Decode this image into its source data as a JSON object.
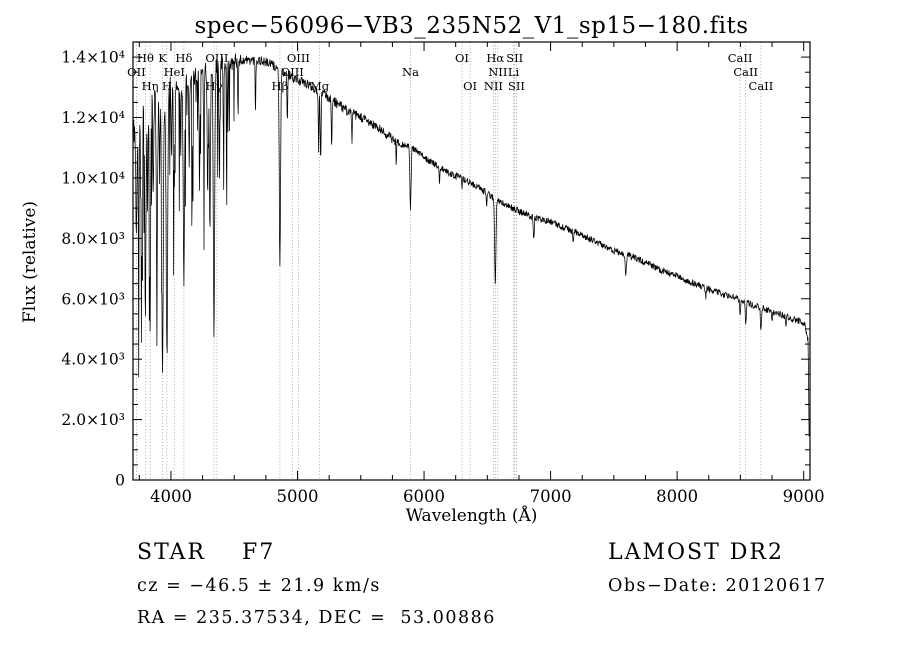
{
  "title": "spec−56096−VB3_235N52_V1_sp15−180.fits",
  "chart_data": {
    "type": "line",
    "title": "spec−56096−VB3_235N52_V1_sp15−180.fits",
    "xlabel": "Wavelength (Å)",
    "ylabel": "Flux (relative)",
    "xlim": [
      3700,
      9050
    ],
    "ylim": [
      0,
      14500
    ],
    "wl_range": [
      3700,
      9045
    ],
    "grid": "off",
    "x_ticks": [
      4000,
      5000,
      6000,
      7000,
      8000,
      9000
    ],
    "x_minor_step": 250,
    "y_minor_step": 500,
    "y_ticks": [
      {
        "v": 0,
        "label": "0"
      },
      {
        "v": 2000,
        "label": "2.0×10³"
      },
      {
        "v": 4000,
        "label": "4.0×10³"
      },
      {
        "v": 6000,
        "label": "6.0×10³"
      },
      {
        "v": 8000,
        "label": "8.0×10³"
      },
      {
        "v": 10000,
        "label": "1.0×10⁴"
      },
      {
        "v": 12000,
        "label": "1.2×10⁴"
      },
      {
        "v": 14000,
        "label": "1.4×10⁴"
      }
    ],
    "line_markers": [
      {
        "text": "Hθ",
        "wl": 3798,
        "row": 1
      },
      {
        "text": "K",
        "wl": 3933,
        "row": 1
      },
      {
        "text": "Hδ",
        "wl": 4102,
        "row": 1
      },
      {
        "text": "OIII",
        "wl": 4363,
        "row": 1
      },
      {
        "text": "OIII",
        "wl": 5007,
        "row": 1
      },
      {
        "text": "OI",
        "wl": 6300,
        "row": 1
      },
      {
        "text": "Hα",
        "wl": 6563,
        "row": 1
      },
      {
        "text": "SII",
        "wl": 6716,
        "row": 1
      },
      {
        "text": "CaII",
        "wl": 8498,
        "row": 1
      },
      {
        "text": "OII",
        "wl": 3727,
        "row": 2
      },
      {
        "text": "HeI",
        "wl": 4026,
        "row": 2
      },
      {
        "text": "OIII",
        "wl": 4959,
        "row": 2
      },
      {
        "text": "Na",
        "wl": 5893,
        "row": 2
      },
      {
        "text": "NII",
        "wl": 6583,
        "row": 2
      },
      {
        "text": "Li",
        "wl": 6708,
        "row": 2
      },
      {
        "text": "CaII",
        "wl": 8542,
        "row": 2
      },
      {
        "text": "Hη",
        "wl": 3835,
        "row": 3
      },
      {
        "text": "H",
        "wl": 3968,
        "row": 3
      },
      {
        "text": "Hγ",
        "wl": 4340,
        "row": 3
      },
      {
        "text": "Hβ",
        "wl": 4861,
        "row": 3
      },
      {
        "text": "Mg",
        "wl": 5175,
        "row": 3
      },
      {
        "text": "OI",
        "wl": 6364,
        "row": 3
      },
      {
        "text": "NII",
        "wl": 6548,
        "row": 3
      },
      {
        "text": "SII",
        "wl": 6731,
        "row": 3
      },
      {
        "text": "CaII",
        "wl": 8662,
        "row": 3
      }
    ],
    "continuum": [
      [
        3700,
        11500
      ],
      [
        3760,
        12200
      ],
      [
        3820,
        12600
      ],
      [
        3880,
        12800
      ],
      [
        3940,
        12800
      ],
      [
        4000,
        12900
      ],
      [
        4100,
        13100
      ],
      [
        4200,
        13400
      ],
      [
        4300,
        13600
      ],
      [
        4400,
        13800
      ],
      [
        4500,
        13850
      ],
      [
        4600,
        13900
      ],
      [
        4700,
        13900
      ],
      [
        4800,
        13750
      ],
      [
        4900,
        13450
      ],
      [
        5000,
        13250
      ],
      [
        5100,
        13050
      ],
      [
        5200,
        12800
      ],
      [
        5300,
        12500
      ],
      [
        5400,
        12200
      ],
      [
        5500,
        12000
      ],
      [
        5600,
        11750
      ],
      [
        5700,
        11450
      ],
      [
        5800,
        11150
      ],
      [
        5900,
        11000
      ],
      [
        6000,
        10700
      ],
      [
        6100,
        10400
      ],
      [
        6200,
        10150
      ],
      [
        6300,
        10000
      ],
      [
        6400,
        9750
      ],
      [
        6500,
        9500
      ],
      [
        6600,
        9200
      ],
      [
        6700,
        9000
      ],
      [
        6800,
        8800
      ],
      [
        6900,
        8650
      ],
      [
        7000,
        8550
      ],
      [
        7100,
        8350
      ],
      [
        7200,
        8200
      ],
      [
        7300,
        8000
      ],
      [
        7400,
        7800
      ],
      [
        7500,
        7600
      ],
      [
        7600,
        7450
      ],
      [
        7700,
        7300
      ],
      [
        7800,
        7100
      ],
      [
        7900,
        6900
      ],
      [
        8000,
        6750
      ],
      [
        8100,
        6550
      ],
      [
        8200,
        6400
      ],
      [
        8300,
        6250
      ],
      [
        8400,
        6100
      ],
      [
        8500,
        5950
      ],
      [
        8600,
        5800
      ],
      [
        8700,
        5650
      ],
      [
        8800,
        5500
      ],
      [
        8900,
        5350
      ],
      [
        8970,
        5250
      ],
      [
        9010,
        5100
      ],
      [
        9035,
        4600
      ],
      [
        9045,
        700
      ]
    ],
    "absorption_lines": [
      [
        3727,
        0.3,
        12
      ],
      [
        3745,
        0.4,
        8
      ],
      [
        3762,
        0.25,
        7
      ],
      [
        3771,
        0.45,
        8
      ],
      [
        3798,
        0.55,
        11
      ],
      [
        3815,
        0.3,
        7
      ],
      [
        3835,
        0.58,
        11
      ],
      [
        3860,
        0.3,
        8
      ],
      [
        3889,
        0.5,
        11
      ],
      [
        3910,
        0.25,
        7
      ],
      [
        3933,
        0.72,
        14
      ],
      [
        3968,
        0.68,
        14
      ],
      [
        4005,
        0.2,
        7
      ],
      [
        4026,
        0.25,
        8
      ],
      [
        4077,
        0.2,
        6
      ],
      [
        4102,
        0.52,
        12
      ],
      [
        4144,
        0.22,
        7
      ],
      [
        4172,
        0.18,
        6
      ],
      [
        4226,
        0.28,
        8
      ],
      [
        4260,
        0.2,
        7
      ],
      [
        4290,
        0.3,
        9
      ],
      [
        4308,
        0.4,
        10
      ],
      [
        4340,
        0.66,
        12
      ],
      [
        4383,
        0.28,
        8
      ],
      [
        4415,
        0.2,
        7
      ],
      [
        4450,
        0.15,
        6
      ],
      [
        4530,
        0.12,
        6
      ],
      [
        4668,
        0.12,
        6
      ],
      [
        4861,
        0.48,
        12
      ],
      [
        4920,
        0.12,
        6
      ],
      [
        5167,
        0.15,
        7
      ],
      [
        5183,
        0.18,
        8
      ],
      [
        5270,
        0.12,
        7
      ],
      [
        5430,
        0.08,
        6
      ],
      [
        5780,
        0.06,
        6
      ],
      [
        5893,
        0.18,
        11
      ],
      [
        6122,
        0.05,
        6
      ],
      [
        6300,
        0.05,
        6
      ],
      [
        6495,
        0.06,
        6
      ],
      [
        6563,
        0.3,
        12
      ],
      [
        6867,
        0.08,
        9
      ],
      [
        7180,
        0.05,
        8
      ],
      [
        7594,
        0.09,
        11
      ],
      [
        8227,
        0.05,
        7
      ],
      [
        8498,
        0.09,
        8
      ],
      [
        8542,
        0.13,
        9
      ],
      [
        8662,
        0.13,
        9
      ],
      [
        8750,
        0.06,
        7
      ],
      [
        8860,
        0.07,
        7
      ]
    ],
    "noise": {
      "seed": 11,
      "amp_bands": [
        [
          4000,
          500
        ],
        [
          4550,
          280
        ],
        [
          5800,
          160
        ],
        [
          9100,
          110
        ]
      ],
      "spike_prob": 0.1,
      "spike_depth": 0.4,
      "spike_below": 4500
    },
    "line_color": "#000000",
    "marker_guide_color": "#8a8a8a"
  },
  "footer": {
    "object_line": {
      "left": "STAR    F7",
      "right": "LAMOST DR2"
    },
    "info_line": {
      "left": "cz = −46.5 ± 21.9 km/s",
      "right": "Obs−Date: 20120617"
    },
    "coord_line": "RA = 235.37534, DEC =  53.00886"
  }
}
